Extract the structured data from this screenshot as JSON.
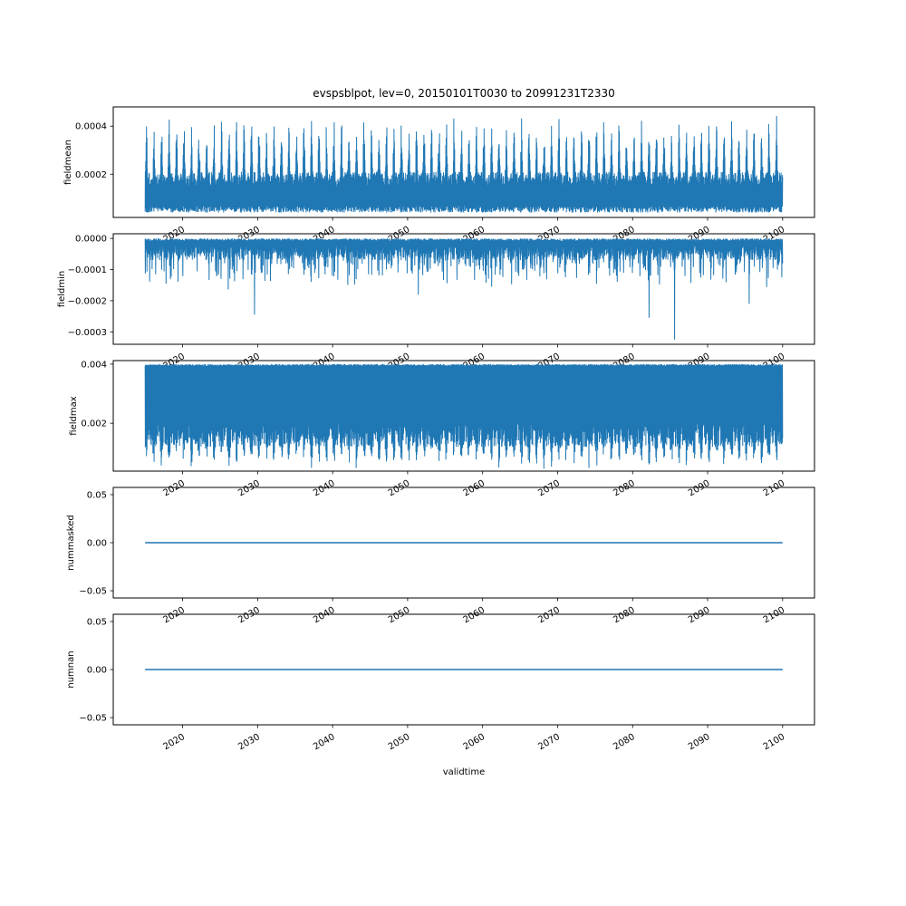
{
  "figure": {
    "title": "evspsblpot, lev=0, 20150101T0030 to 20991231T2330",
    "xlabel": "validtime",
    "background": "#ffffff",
    "line_color": "#1f77b4",
    "axis_color": "#000000",
    "text_color": "#000000",
    "xlim": [
      2010.75,
      2104.25
    ],
    "x_data_range": [
      2015.0,
      2100.0
    ],
    "xticks": [
      2020,
      2030,
      2040,
      2050,
      2060,
      2070,
      2080,
      2090,
      2100
    ],
    "xtick_labels": [
      "2020",
      "2030",
      "2040",
      "2050",
      "2060",
      "2070",
      "2080",
      "2090",
      "2100"
    ],
    "xtick_rotation_deg": 30
  },
  "chart_data": [
    {
      "type": "line",
      "ylabel": "fieldmean",
      "ylim": [
        2e-05,
        0.00048
      ],
      "yticks": [
        0.0002,
        0.0004
      ],
      "ytick_labels": [
        "0.0002",
        "0.0004"
      ],
      "description": "Dense high-frequency series; bulk between ~0.00004 and ~0.00022 with annual bursts peaking 0.0003 to 0.00046",
      "signal": {
        "kind": "dense_burst_up",
        "seed": 101,
        "n": 3200,
        "base_min": 4e-05,
        "base_jitter": 3e-05,
        "top_base": 0.00015,
        "top_jitter": 6e-05,
        "burst_amp": 0.00013,
        "burst_jitter": 0.00012,
        "burst_period_years": 1.0,
        "burst_sharpness": 4
      }
    },
    {
      "type": "line",
      "ylabel": "fieldmin",
      "ylim": [
        -0.00034,
        1.5e-05
      ],
      "yticks": [
        0.0,
        -0.0001,
        -0.0002,
        -0.0003
      ],
      "ytick_labels": [
        "0.0000",
        "−0.0001",
        "−0.0002",
        "−0.0003"
      ],
      "description": "Dense series hugging 0 with downward spikes, mostly to -0.0001/-0.0002; isolated extremes near -0.00025 (~2030, ~2082) and -0.00032 (~2085)",
      "signal": {
        "kind": "dense_spike_down",
        "seed": 202,
        "n": 3200,
        "near_zero_jitter": 8e-06,
        "body": 2e-05,
        "body_jitter": 5e-05,
        "spike_prob": 0.22,
        "spike_amp": 9e-05,
        "deep_prob": 0.02,
        "deep_amp": 7e-05,
        "extremes": [
          [
            2029.6,
            -0.000245
          ],
          [
            2082.2,
            -0.000255
          ],
          [
            2085.6,
            -0.000325
          ],
          [
            2095.5,
            -0.00021
          ]
        ]
      }
    },
    {
      "type": "line",
      "ylabel": "fieldmax",
      "ylim": [
        0.00038,
        0.00412
      ],
      "yticks": [
        0.002,
        0.004
      ],
      "ytick_labels": [
        "0.002",
        "0.004"
      ],
      "description": "Dense series capped flat at 0.004 with lower envelope ~0.001-0.002 and annual dips reaching ~0.0005",
      "signal": {
        "kind": "dense_burst_down_from_top",
        "seed": 303,
        "n": 3200,
        "top": 0.004,
        "top_jitter": 6e-05,
        "drop_base": 0.002,
        "drop_jitter": 0.0008,
        "burst_amp": 0.0005,
        "burst_jitter": 0.0003,
        "burst_period_years": 1.0,
        "burst_sharpness": 2
      }
    },
    {
      "type": "line",
      "ylabel": "nummasked",
      "ylim": [
        -0.0575,
        0.0575
      ],
      "yticks": [
        -0.05,
        0.0,
        0.05
      ],
      "ytick_labels": [
        "−0.05",
        "0.00",
        "0.05"
      ],
      "description": "Constant 0 from 2015 to 2100",
      "signal": {
        "kind": "constant",
        "value": 0.0
      }
    },
    {
      "type": "line",
      "ylabel": "numnan",
      "ylim": [
        -0.0575,
        0.0575
      ],
      "yticks": [
        -0.05,
        0.0,
        0.05
      ],
      "ytick_labels": [
        "−0.05",
        "0.00",
        "0.05"
      ],
      "description": "Constant 0 from 2015 to 2100",
      "signal": {
        "kind": "constant",
        "value": 0.0
      }
    }
  ]
}
